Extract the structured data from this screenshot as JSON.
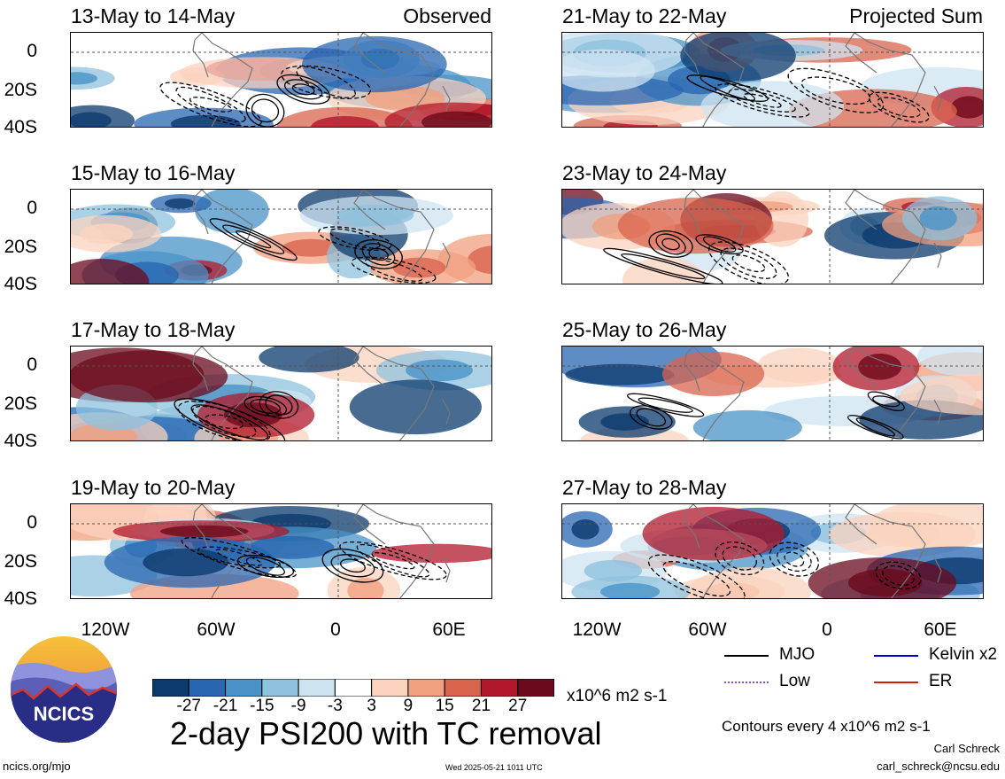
{
  "panel_tags": {
    "observed": "Observed",
    "projected": "Projected Sum"
  },
  "panels": [
    {
      "title": "13-May to 14-May",
      "seed": 1
    },
    {
      "title": "15-May to 16-May",
      "seed": 2
    },
    {
      "title": "17-May to 18-May",
      "seed": 3
    },
    {
      "title": "19-May to 20-May",
      "seed": 4
    },
    {
      "title": "21-May to 22-May",
      "seed": 5
    },
    {
      "title": "23-May to 24-May",
      "seed": 6
    },
    {
      "title": "25-May to 26-May",
      "seed": 7
    },
    {
      "title": "27-May to 28-May",
      "seed": 8
    }
  ],
  "y_ticks": [
    "0",
    "20S",
    "40S"
  ],
  "x_ticks": [
    "120W",
    "60W",
    "0",
    "60E"
  ],
  "colorbar": {
    "labels": [
      "-27",
      "-21",
      "-15",
      "-9",
      "-3",
      "3",
      "9",
      "15",
      "21",
      "27"
    ],
    "unit": "x10^6 m2 s-1",
    "colors": [
      "#0b3a6e",
      "#2866b2",
      "#4a93c8",
      "#8fc2de",
      "#cfe4f1",
      "#ffffff",
      "#fbd3bf",
      "#f1a07f",
      "#d9644e",
      "#b2182b",
      "#6b0a1c"
    ]
  },
  "main_title": "2-day PSI200 with TC removal",
  "legend": {
    "items": [
      {
        "label": "MJO",
        "color": "#000000"
      },
      {
        "label": "Kelvin x2",
        "color": "#0000cc"
      },
      {
        "label": "Low",
        "color": "#a040d0"
      },
      {
        "label": "ER",
        "color": "#cc2200"
      }
    ],
    "contour_note": "Contours every 4 x10^6 m2 s-1"
  },
  "logo_text": "NCICS",
  "footer": {
    "left": "ncics.org/mjo",
    "center": "Wed 2025-05-21 1011 UTC",
    "author": "Carl Schreck",
    "email": "carl_schreck@ncsu.edu"
  }
}
